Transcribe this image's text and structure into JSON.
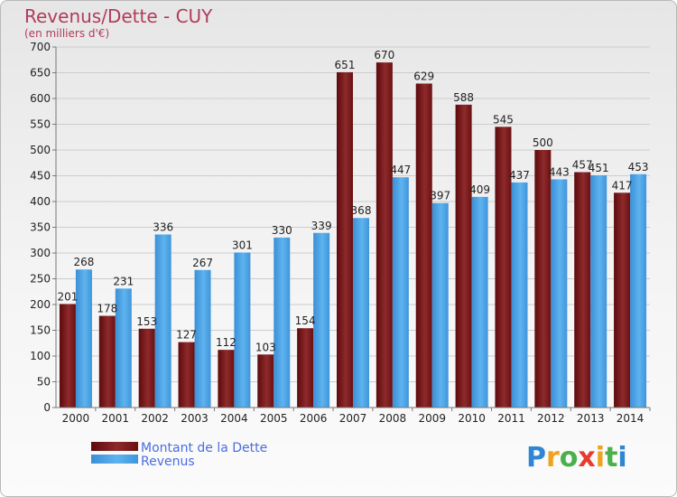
{
  "chart_data": {
    "type": "bar",
    "title": "Revenus/Dette - CUY",
    "subtitle": "(en milliers d'€)",
    "categories": [
      "2000",
      "2001",
      "2002",
      "2003",
      "2004",
      "2005",
      "2006",
      "2007",
      "2008",
      "2009",
      "2010",
      "2011",
      "2012",
      "2013",
      "2014"
    ],
    "series": [
      {
        "name": "Montant de la Dette",
        "color": "#7a1416",
        "values": [
          201,
          178,
          153,
          127,
          112,
          103,
          154,
          651,
          670,
          629,
          588,
          545,
          500,
          457,
          417
        ]
      },
      {
        "name": "Revenus",
        "color": "#4aa3e6",
        "values": [
          268,
          231,
          336,
          267,
          301,
          330,
          339,
          368,
          447,
          397,
          409,
          437,
          443,
          451,
          453
        ]
      }
    ],
    "ylim": [
      0,
      700
    ],
    "yticks": [
      0,
      50,
      100,
      150,
      200,
      250,
      300,
      350,
      400,
      450,
      500,
      550,
      600,
      650,
      700
    ],
    "grid": true,
    "legend_position": "bottom-left",
    "logo_text": "Proxiti"
  }
}
